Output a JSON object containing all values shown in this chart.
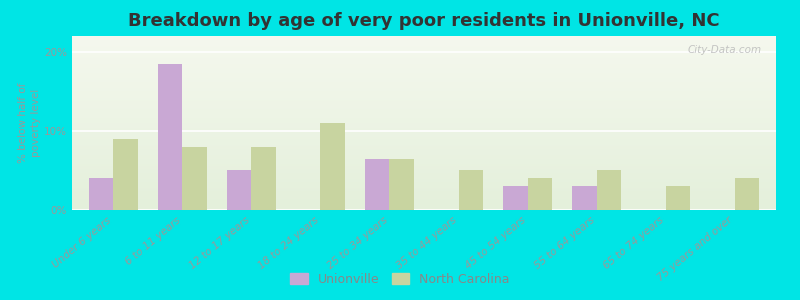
{
  "title": "Breakdown by age of very poor residents in Unionville, NC",
  "categories": [
    "Under 6 years",
    "6 to 11 years",
    "12 to 17 years",
    "18 to 24 years",
    "25 to 34 years",
    "35 to 44 years",
    "45 to 54 years",
    "55 to 64 years",
    "65 to 74 years",
    "75 years and over"
  ],
  "unionville": [
    4.0,
    18.5,
    5.0,
    0.0,
    6.5,
    0.0,
    3.0,
    3.0,
    0.0,
    0.0
  ],
  "north_carolina": [
    9.0,
    8.0,
    8.0,
    11.0,
    6.5,
    5.0,
    4.0,
    5.0,
    3.0,
    4.0
  ],
  "unionville_color": "#c9a8d4",
  "nc_color": "#c8d4a0",
  "background_outer": "#00e5e5",
  "background_plot_top": "#eaf2e2",
  "background_plot_bottom": "#f5f8ee",
  "ylabel": "% below half of\npoverty level",
  "ylim": [
    0,
    22
  ],
  "yticks": [
    0,
    10,
    20
  ],
  "ytick_labels": [
    "0%",
    "10%",
    "20%"
  ],
  "bar_width": 0.35,
  "title_fontsize": 13,
  "tick_fontsize": 7.5,
  "ylabel_fontsize": 7.5,
  "legend_fontsize": 9,
  "watermark": "City-Data.com"
}
